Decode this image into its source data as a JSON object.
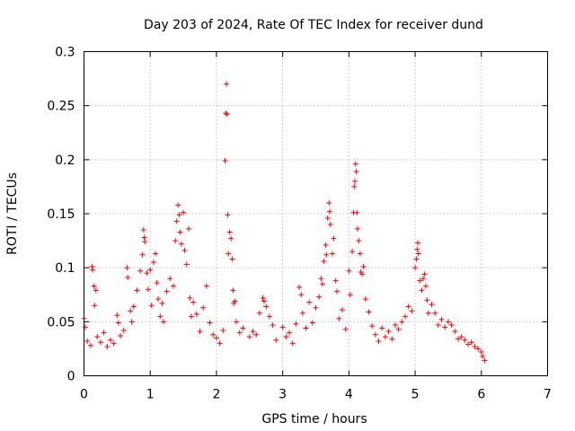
{
  "chart_data": {
    "type": "scatter",
    "title": "Day 203 of 2024, Rate Of TEC Index for receiver dund",
    "xlabel": "GPS time / hours",
    "ylabel": "ROTI / TECUs",
    "xlim": [
      0,
      7
    ],
    "ylim": [
      0,
      0.3
    ],
    "x_ticks": [
      "0",
      "1",
      "2",
      "3",
      "4",
      "5",
      "6",
      "7"
    ],
    "y_ticks": [
      "0",
      "0.05",
      "0.1",
      "0.15",
      "0.2",
      "0.25",
      "0.3"
    ],
    "grid": true,
    "marker": "plus",
    "color": "#ff0000",
    "series": [
      {
        "points": [
          [
            0.0,
            0.053
          ],
          [
            0.02,
            0.045
          ],
          [
            0.05,
            0.032
          ],
          [
            0.1,
            0.028
          ],
          [
            0.12,
            0.101
          ],
          [
            0.13,
            0.098
          ],
          [
            0.15,
            0.083
          ],
          [
            0.16,
            0.065
          ],
          [
            0.18,
            0.079
          ],
          [
            0.2,
            0.036
          ],
          [
            0.25,
            0.031
          ],
          [
            0.3,
            0.04
          ],
          [
            0.35,
            0.027
          ],
          [
            0.4,
            0.033
          ],
          [
            0.45,
            0.03
          ],
          [
            0.5,
            0.056
          ],
          [
            0.52,
            0.049
          ],
          [
            0.55,
            0.037
          ],
          [
            0.6,
            0.042
          ],
          [
            0.65,
            0.1
          ],
          [
            0.66,
            0.091
          ],
          [
            0.7,
            0.06
          ],
          [
            0.72,
            0.05
          ],
          [
            0.75,
            0.064
          ],
          [
            0.8,
            0.079
          ],
          [
            0.85,
            0.097
          ],
          [
            0.88,
            0.112
          ],
          [
            0.9,
            0.135
          ],
          [
            0.91,
            0.128
          ],
          [
            0.92,
            0.124
          ],
          [
            0.95,
            0.095
          ],
          [
            0.97,
            0.08
          ],
          [
            1.0,
            0.098
          ],
          [
            1.02,
            0.065
          ],
          [
            1.05,
            0.105
          ],
          [
            1.08,
            0.113
          ],
          [
            1.1,
            0.086
          ],
          [
            1.12,
            0.071
          ],
          [
            1.15,
            0.055
          ],
          [
            1.18,
            0.067
          ],
          [
            1.2,
            0.05
          ],
          [
            1.25,
            0.078
          ],
          [
            1.3,
            0.09
          ],
          [
            1.35,
            0.083
          ],
          [
            1.38,
            0.125
          ],
          [
            1.4,
            0.143
          ],
          [
            1.42,
            0.158
          ],
          [
            1.44,
            0.149
          ],
          [
            1.45,
            0.133
          ],
          [
            1.47,
            0.122
          ],
          [
            1.5,
            0.151
          ],
          [
            1.52,
            0.116
          ],
          [
            1.55,
            0.103
          ],
          [
            1.58,
            0.136
          ],
          [
            1.6,
            0.072
          ],
          [
            1.62,
            0.055
          ],
          [
            1.65,
            0.068
          ],
          [
            1.7,
            0.057
          ],
          [
            1.75,
            0.041
          ],
          [
            1.8,
            0.063
          ],
          [
            1.85,
            0.083
          ],
          [
            1.9,
            0.049
          ],
          [
            1.95,
            0.038
          ],
          [
            2.0,
            0.035
          ],
          [
            2.05,
            0.03
          ],
          [
            2.1,
            0.042
          ],
          [
            2.13,
            0.199
          ],
          [
            2.14,
            0.243
          ],
          [
            2.15,
            0.27
          ],
          [
            2.16,
            0.242
          ],
          [
            2.17,
            0.149
          ],
          [
            2.18,
            0.113
          ],
          [
            2.2,
            0.133
          ],
          [
            2.22,
            0.127
          ],
          [
            2.24,
            0.108
          ],
          [
            2.25,
            0.079
          ],
          [
            2.26,
            0.067
          ],
          [
            2.28,
            0.069
          ],
          [
            2.3,
            0.05
          ],
          [
            2.35,
            0.04
          ],
          [
            2.4,
            0.044
          ],
          [
            2.5,
            0.036
          ],
          [
            2.55,
            0.041
          ],
          [
            2.6,
            0.038
          ],
          [
            2.65,
            0.058
          ],
          [
            2.7,
            0.072
          ],
          [
            2.72,
            0.069
          ],
          [
            2.75,
            0.064
          ],
          [
            2.8,
            0.055
          ],
          [
            2.85,
            0.047
          ],
          [
            2.9,
            0.033
          ],
          [
            3.0,
            0.045
          ],
          [
            3.05,
            0.036
          ],
          [
            3.1,
            0.04
          ],
          [
            3.15,
            0.03
          ],
          [
            3.2,
            0.048
          ],
          [
            3.25,
            0.082
          ],
          [
            3.28,
            0.075
          ],
          [
            3.3,
            0.058
          ],
          [
            3.35,
            0.044
          ],
          [
            3.4,
            0.068
          ],
          [
            3.45,
            0.049
          ],
          [
            3.5,
            0.063
          ],
          [
            3.55,
            0.073
          ],
          [
            3.58,
            0.09
          ],
          [
            3.6,
            0.085
          ],
          [
            3.62,
            0.106
          ],
          [
            3.65,
            0.121
          ],
          [
            3.66,
            0.112
          ],
          [
            3.68,
            0.146
          ],
          [
            3.7,
            0.16
          ],
          [
            3.71,
            0.152
          ],
          [
            3.72,
            0.14
          ],
          [
            3.75,
            0.113
          ],
          [
            3.77,
            0.127
          ],
          [
            3.8,
            0.088
          ],
          [
            3.82,
            0.078
          ],
          [
            3.85,
            0.053
          ],
          [
            3.9,
            0.061
          ],
          [
            3.95,
            0.043
          ],
          [
            4.0,
            0.097
          ],
          [
            4.02,
            0.075
          ],
          [
            4.05,
            0.115
          ],
          [
            4.07,
            0.151
          ],
          [
            4.08,
            0.175
          ],
          [
            4.09,
            0.18
          ],
          [
            4.1,
            0.196
          ],
          [
            4.11,
            0.189
          ],
          [
            4.12,
            0.151
          ],
          [
            4.13,
            0.136
          ],
          [
            4.15,
            0.125
          ],
          [
            4.17,
            0.113
          ],
          [
            4.18,
            0.096
          ],
          [
            4.2,
            0.094
          ],
          [
            4.22,
            0.101
          ],
          [
            4.25,
            0.071
          ],
          [
            4.3,
            0.059
          ],
          [
            4.35,
            0.046
          ],
          [
            4.4,
            0.038
          ],
          [
            4.45,
            0.032
          ],
          [
            4.5,
            0.044
          ],
          [
            4.55,
            0.036
          ],
          [
            4.6,
            0.041
          ],
          [
            4.65,
            0.034
          ],
          [
            4.7,
            0.047
          ],
          [
            4.75,
            0.043
          ],
          [
            4.8,
            0.05
          ],
          [
            4.85,
            0.055
          ],
          [
            4.9,
            0.064
          ],
          [
            4.95,
            0.06
          ],
          [
            5.0,
            0.1
          ],
          [
            5.02,
            0.108
          ],
          [
            5.03,
            0.117
          ],
          [
            5.04,
            0.123
          ],
          [
            5.05,
            0.113
          ],
          [
            5.07,
            0.088
          ],
          [
            5.1,
            0.079
          ],
          [
            5.12,
            0.09
          ],
          [
            5.14,
            0.094
          ],
          [
            5.16,
            0.083
          ],
          [
            5.18,
            0.07
          ],
          [
            5.2,
            0.058
          ],
          [
            5.25,
            0.066
          ],
          [
            5.3,
            0.058
          ],
          [
            5.35,
            0.047
          ],
          [
            5.4,
            0.052
          ],
          [
            5.45,
            0.045
          ],
          [
            5.5,
            0.05
          ],
          [
            5.55,
            0.047
          ],
          [
            5.6,
            0.041
          ],
          [
            5.65,
            0.034
          ],
          [
            5.7,
            0.036
          ],
          [
            5.75,
            0.033
          ],
          [
            5.8,
            0.029
          ],
          [
            5.85,
            0.031
          ],
          [
            5.9,
            0.027
          ],
          [
            5.95,
            0.025
          ],
          [
            6.0,
            0.022
          ],
          [
            6.02,
            0.018
          ],
          [
            6.05,
            0.014
          ]
        ]
      }
    ]
  }
}
